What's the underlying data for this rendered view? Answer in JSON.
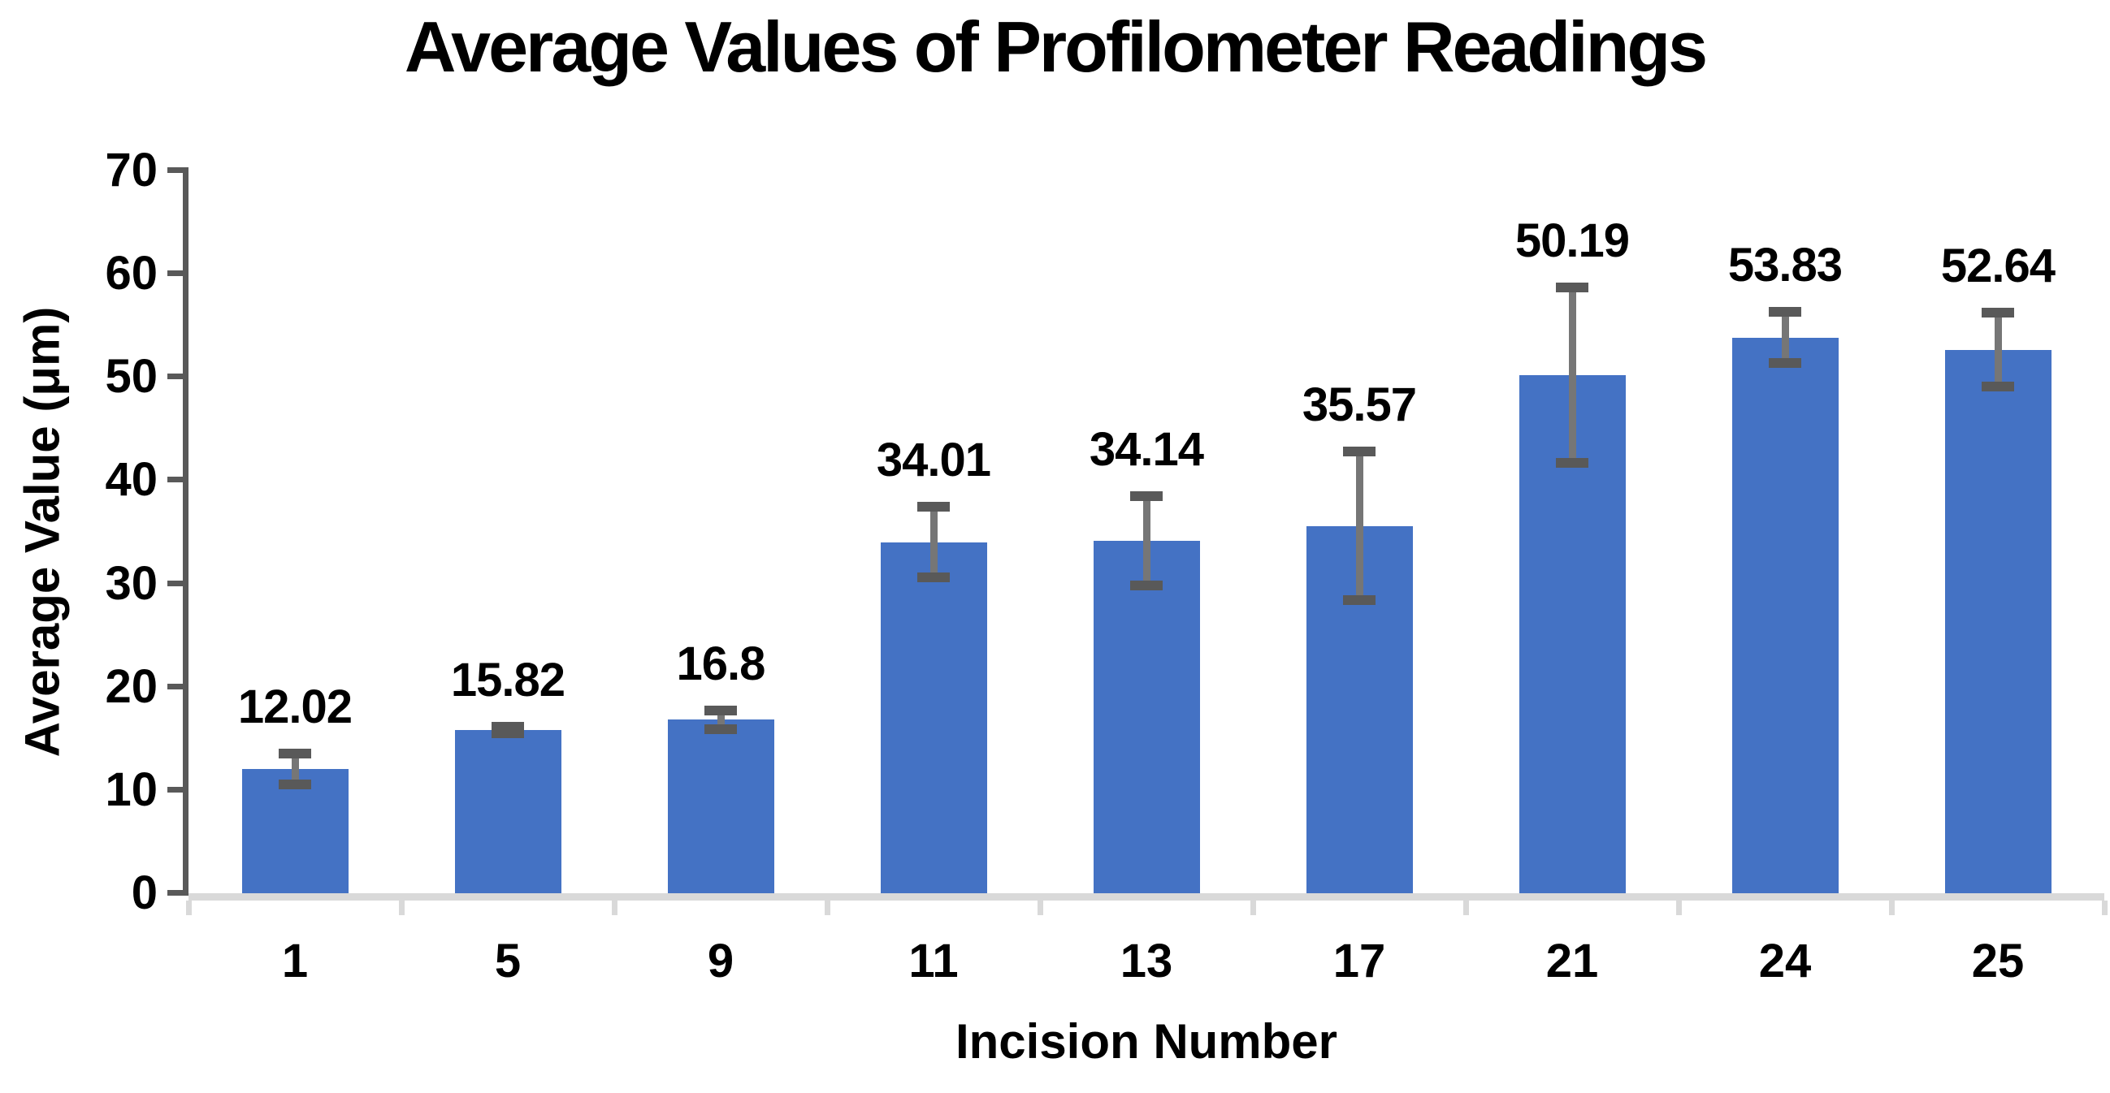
{
  "chart_data": {
    "type": "bar",
    "title": "Average Values of Profilometer Readings",
    "xlabel": "Incision Number",
    "ylabel": "Average Value (μm)",
    "categories": [
      "1",
      "5",
      "9",
      "11",
      "13",
      "17",
      "21",
      "24",
      "25"
    ],
    "values": [
      12.02,
      15.82,
      16.8,
      34.01,
      34.14,
      35.57,
      50.19,
      53.83,
      52.64
    ],
    "data_labels": [
      "12.02",
      "15.82",
      "16.8",
      "34.01",
      "34.14",
      "35.57",
      "50.19",
      "53.83",
      "52.64"
    ],
    "error_bars": [
      1.5,
      0.3,
      0.9,
      3.4,
      4.3,
      7.2,
      8.5,
      2.5,
      3.6
    ],
    "ylim": [
      0,
      70
    ],
    "ytick_step": 10,
    "ytick_labels": [
      "0",
      "10",
      "20",
      "30",
      "40",
      "50",
      "60",
      "70"
    ],
    "grid": false,
    "legend": null,
    "colors": {
      "bar_fill": "#4472C4",
      "error_cap": "#595959",
      "error_line": "#767676",
      "y_axis": "#595959",
      "x_baseline": "#D9D9D9",
      "text": "#000000"
    }
  }
}
